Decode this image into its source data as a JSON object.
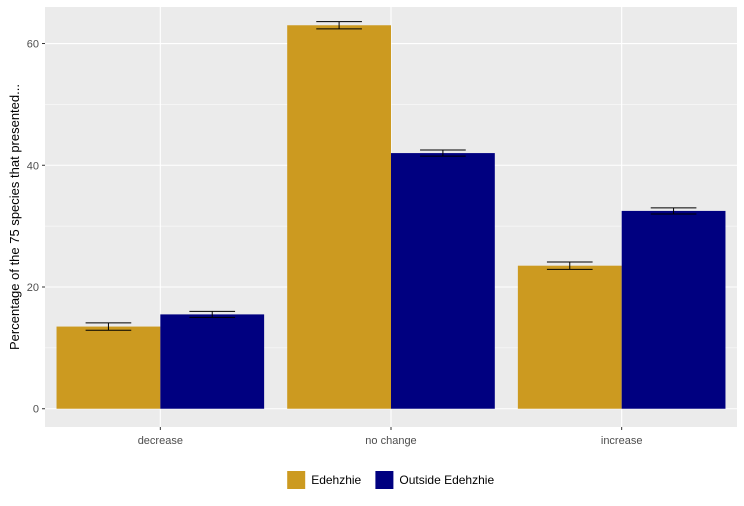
{
  "chart_data": {
    "type": "bar",
    "title": "",
    "xlabel": "",
    "ylabel": "Percentage of the 75 species that presented...",
    "categories": [
      "decrease",
      "no change",
      "increase"
    ],
    "series": [
      {
        "name": "Edehzhie",
        "color": "#CC9A20",
        "values": [
          13.5,
          63.0,
          23.5
        ],
        "error": [
          0.6,
          0.6,
          0.6
        ]
      },
      {
        "name": "Outside Edehzhie",
        "color": "#000080",
        "values": [
          15.5,
          42.0,
          32.5
        ],
        "error": [
          0.5,
          0.5,
          0.5
        ]
      }
    ],
    "ylim": [
      -3,
      66
    ],
    "yticks": [
      0,
      20,
      40,
      60
    ],
    "grid": true,
    "legend_position": "bottom",
    "panel_background": "#EBEBEB",
    "grid_color": "#FFFFFF"
  }
}
